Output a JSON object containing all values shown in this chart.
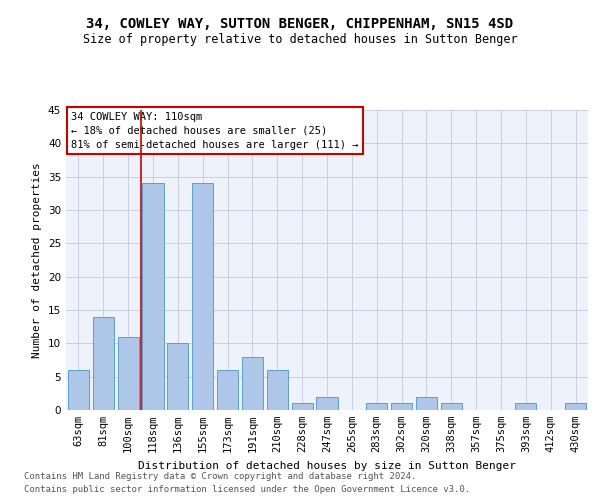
{
  "title1": "34, COWLEY WAY, SUTTON BENGER, CHIPPENHAM, SN15 4SD",
  "title2": "Size of property relative to detached houses in Sutton Benger",
  "xlabel": "Distribution of detached houses by size in Sutton Benger",
  "ylabel": "Number of detached properties",
  "categories": [
    "63sqm",
    "81sqm",
    "100sqm",
    "118sqm",
    "136sqm",
    "155sqm",
    "173sqm",
    "191sqm",
    "210sqm",
    "228sqm",
    "247sqm",
    "265sqm",
    "283sqm",
    "302sqm",
    "320sqm",
    "338sqm",
    "357sqm",
    "375sqm",
    "393sqm",
    "412sqm",
    "430sqm"
  ],
  "values": [
    6,
    14,
    11,
    34,
    10,
    34,
    6,
    8,
    6,
    1,
    2,
    0,
    1,
    1,
    2,
    1,
    0,
    0,
    1,
    0,
    1
  ],
  "bar_color": "#aec6e8",
  "bar_edge_color": "#5a9fd4",
  "ylim": [
    0,
    45
  ],
  "yticks": [
    0,
    5,
    10,
    15,
    20,
    25,
    30,
    35,
    40,
    45
  ],
  "property_label": "34 COWLEY WAY: 110sqm",
  "annotation_line1": "← 18% of detached houses are smaller (25)",
  "annotation_line2": "81% of semi-detached houses are larger (111) →",
  "annotation_box_color": "#ffffff",
  "annotation_border_color": "#cc0000",
  "vline_color": "#cc0000",
  "vline_x_index": 2.5,
  "footer1": "Contains HM Land Registry data © Crown copyright and database right 2024.",
  "footer2": "Contains public sector information licensed under the Open Government Licence v3.0.",
  "bg_color": "#eef2fa",
  "grid_color": "#c8d0e0",
  "title1_fontsize": 10,
  "title2_fontsize": 8.5,
  "xlabel_fontsize": 8,
  "ylabel_fontsize": 8,
  "tick_fontsize": 7.5,
  "annot_fontsize": 7.5,
  "footer_fontsize": 6.5
}
